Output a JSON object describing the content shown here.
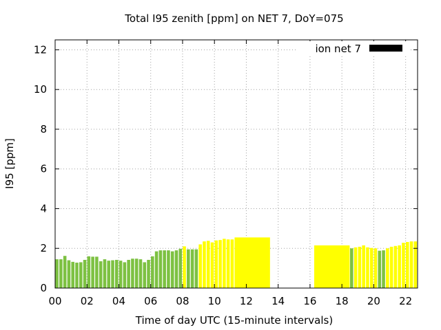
{
  "chart_data": {
    "type": "bar",
    "title": "Total I95 zenith [ppm] on NET 7, DoY=075",
    "xlabel": "Time of day UTC (15-minute intervals)",
    "ylabel": "I95 [ppm]",
    "xlim": [
      0,
      22.75
    ],
    "ylim": [
      0,
      12.5
    ],
    "xticks": [
      0,
      2,
      4,
      6,
      8,
      10,
      12,
      14,
      16,
      18,
      20,
      22
    ],
    "xtick_labels": [
      "00",
      "02",
      "04",
      "06",
      "08",
      "10",
      "12",
      "14",
      "16",
      "18",
      "20",
      "22"
    ],
    "yticks": [
      0,
      2,
      4,
      6,
      8,
      10,
      12
    ],
    "grid": true,
    "legend": {
      "label": "ion net 7",
      "position": "top-right",
      "color": "#000000"
    },
    "colors": {
      "green": "#7dc142",
      "yellow": "#ffff00"
    },
    "bars": [
      {
        "x": 0.0,
        "w": 0.25,
        "y": 1.45,
        "c": "green"
      },
      {
        "x": 0.25,
        "w": 0.25,
        "y": 1.45,
        "c": "green"
      },
      {
        "x": 0.5,
        "w": 0.25,
        "y": 1.62,
        "c": "green"
      },
      {
        "x": 0.75,
        "w": 0.25,
        "y": 1.4,
        "c": "green"
      },
      {
        "x": 1.0,
        "w": 0.25,
        "y": 1.32,
        "c": "green"
      },
      {
        "x": 1.25,
        "w": 0.25,
        "y": 1.28,
        "c": "green"
      },
      {
        "x": 1.5,
        "w": 0.25,
        "y": 1.3,
        "c": "green"
      },
      {
        "x": 1.75,
        "w": 0.25,
        "y": 1.42,
        "c": "green"
      },
      {
        "x": 2.0,
        "w": 0.25,
        "y": 1.6,
        "c": "green"
      },
      {
        "x": 2.25,
        "w": 0.25,
        "y": 1.58,
        "c": "green"
      },
      {
        "x": 2.5,
        "w": 0.25,
        "y": 1.58,
        "c": "green"
      },
      {
        "x": 2.75,
        "w": 0.25,
        "y": 1.35,
        "c": "green"
      },
      {
        "x": 3.0,
        "w": 0.25,
        "y": 1.45,
        "c": "green"
      },
      {
        "x": 3.25,
        "w": 0.25,
        "y": 1.38,
        "c": "green"
      },
      {
        "x": 3.5,
        "w": 0.25,
        "y": 1.4,
        "c": "green"
      },
      {
        "x": 3.75,
        "w": 0.25,
        "y": 1.42,
        "c": "green"
      },
      {
        "x": 4.0,
        "w": 0.25,
        "y": 1.38,
        "c": "green"
      },
      {
        "x": 4.25,
        "w": 0.25,
        "y": 1.3,
        "c": "green"
      },
      {
        "x": 4.5,
        "w": 0.25,
        "y": 1.42,
        "c": "green"
      },
      {
        "x": 4.75,
        "w": 0.25,
        "y": 1.48,
        "c": "green"
      },
      {
        "x": 5.0,
        "w": 0.25,
        "y": 1.48,
        "c": "green"
      },
      {
        "x": 5.25,
        "w": 0.25,
        "y": 1.45,
        "c": "green"
      },
      {
        "x": 5.5,
        "w": 0.25,
        "y": 1.3,
        "c": "green"
      },
      {
        "x": 5.75,
        "w": 0.25,
        "y": 1.42,
        "c": "green"
      },
      {
        "x": 6.0,
        "w": 0.25,
        "y": 1.6,
        "c": "green"
      },
      {
        "x": 6.25,
        "w": 0.25,
        "y": 1.85,
        "c": "green"
      },
      {
        "x": 6.5,
        "w": 0.25,
        "y": 1.9,
        "c": "green"
      },
      {
        "x": 6.75,
        "w": 0.25,
        "y": 1.9,
        "c": "green"
      },
      {
        "x": 7.0,
        "w": 0.25,
        "y": 1.9,
        "c": "green"
      },
      {
        "x": 7.25,
        "w": 0.25,
        "y": 1.85,
        "c": "green"
      },
      {
        "x": 7.5,
        "w": 0.25,
        "y": 1.9,
        "c": "green"
      },
      {
        "x": 7.75,
        "w": 0.25,
        "y": 1.98,
        "c": "green"
      },
      {
        "x": 8.0,
        "w": 0.25,
        "y": 2.1,
        "c": "yellow"
      },
      {
        "x": 8.25,
        "w": 0.25,
        "y": 1.95,
        "c": "green"
      },
      {
        "x": 8.5,
        "w": 0.25,
        "y": 1.95,
        "c": "green"
      },
      {
        "x": 8.75,
        "w": 0.25,
        "y": 1.95,
        "c": "green"
      },
      {
        "x": 9.0,
        "w": 0.25,
        "y": 2.2,
        "c": "yellow"
      },
      {
        "x": 9.25,
        "w": 0.25,
        "y": 2.35,
        "c": "yellow"
      },
      {
        "x": 9.5,
        "w": 0.25,
        "y": 2.38,
        "c": "yellow"
      },
      {
        "x": 9.75,
        "w": 0.25,
        "y": 2.3,
        "c": "yellow"
      },
      {
        "x": 10.0,
        "w": 0.25,
        "y": 2.4,
        "c": "yellow"
      },
      {
        "x": 10.25,
        "w": 0.25,
        "y": 2.42,
        "c": "yellow"
      },
      {
        "x": 10.5,
        "w": 0.25,
        "y": 2.48,
        "c": "yellow"
      },
      {
        "x": 10.75,
        "w": 0.25,
        "y": 2.45,
        "c": "yellow"
      },
      {
        "x": 11.0,
        "w": 0.25,
        "y": 2.45,
        "c": "yellow"
      },
      {
        "x": 11.25,
        "w": 2.25,
        "y": 2.55,
        "c": "yellow"
      },
      {
        "x": 16.25,
        "w": 2.25,
        "y": 2.15,
        "c": "yellow"
      },
      {
        "x": 18.5,
        "w": 0.25,
        "y": 2.0,
        "c": "green"
      },
      {
        "x": 18.75,
        "w": 0.25,
        "y": 2.05,
        "c": "yellow"
      },
      {
        "x": 19.0,
        "w": 0.25,
        "y": 2.08,
        "c": "yellow"
      },
      {
        "x": 19.25,
        "w": 0.25,
        "y": 2.15,
        "c": "yellow"
      },
      {
        "x": 19.5,
        "w": 0.25,
        "y": 2.05,
        "c": "yellow"
      },
      {
        "x": 19.75,
        "w": 0.25,
        "y": 2.02,
        "c": "yellow"
      },
      {
        "x": 20.0,
        "w": 0.25,
        "y": 2.0,
        "c": "yellow"
      },
      {
        "x": 20.25,
        "w": 0.25,
        "y": 1.88,
        "c": "green"
      },
      {
        "x": 20.5,
        "w": 0.25,
        "y": 1.9,
        "c": "green"
      },
      {
        "x": 20.75,
        "w": 0.25,
        "y": 2.0,
        "c": "yellow"
      },
      {
        "x": 21.0,
        "w": 0.25,
        "y": 2.08,
        "c": "yellow"
      },
      {
        "x": 21.25,
        "w": 0.25,
        "y": 2.12,
        "c": "yellow"
      },
      {
        "x": 21.5,
        "w": 0.25,
        "y": 2.15,
        "c": "yellow"
      },
      {
        "x": 21.75,
        "w": 0.25,
        "y": 2.28,
        "c": "yellow"
      },
      {
        "x": 22.0,
        "w": 0.25,
        "y": 2.32,
        "c": "yellow"
      },
      {
        "x": 22.25,
        "w": 0.25,
        "y": 2.35,
        "c": "yellow"
      },
      {
        "x": 22.5,
        "w": 0.25,
        "y": 2.35,
        "c": "yellow"
      }
    ]
  }
}
